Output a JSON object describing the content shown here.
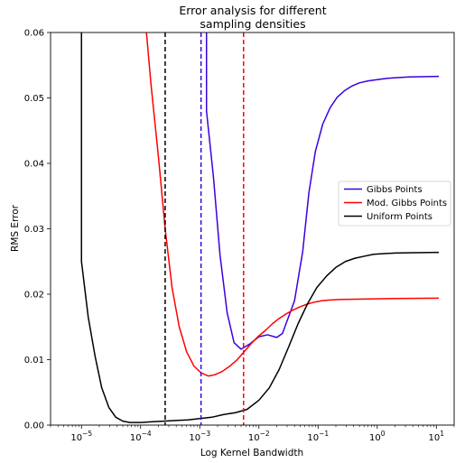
{
  "chart_data": {
    "type": "line",
    "title_lines": [
      "Error analysis for different",
      "sampling densities"
    ],
    "xlabel": "Log Kernel Bandwidth",
    "ylabel": "RMS Error",
    "xscale": "log",
    "xlim": [
      3e-06,
      20
    ],
    "ylim": [
      0,
      0.06
    ],
    "yticks": [
      0.0,
      0.01,
      0.02,
      0.03,
      0.04,
      0.05,
      0.06
    ],
    "ytick_labels": [
      "0.00",
      "0.01",
      "0.02",
      "0.03",
      "0.04",
      "0.05",
      "0.06"
    ],
    "xticks": [
      {
        "base": "10",
        "exp": "−5",
        "value": 1e-05
      },
      {
        "base": "10",
        "exp": "−4",
        "value": 0.0001
      },
      {
        "base": "10",
        "exp": "−3",
        "value": 0.001
      },
      {
        "base": "10",
        "exp": "−2",
        "value": 0.01
      },
      {
        "base": "10",
        "exp": "−1",
        "value": 0.1
      },
      {
        "base": "10",
        "exp": "0",
        "value": 1
      },
      {
        "base": "10",
        "exp": "1",
        "value": 10
      }
    ],
    "grid": false,
    "legend_position": "center-right",
    "series": [
      {
        "name": "Gibbs Points",
        "color": "#3a00e0",
        "points": [
          [
            0.0013,
            0.062
          ],
          [
            0.0013,
            0.048
          ],
          [
            0.0017,
            0.038
          ],
          [
            0.0022,
            0.026
          ],
          [
            0.0029,
            0.0172
          ],
          [
            0.0038,
            0.0126
          ],
          [
            0.005,
            0.0116
          ],
          [
            0.007,
            0.0124
          ],
          [
            0.01,
            0.0135
          ],
          [
            0.014,
            0.0138
          ],
          [
            0.02,
            0.0134
          ],
          [
            0.025,
            0.014
          ],
          [
            0.04,
            0.019
          ],
          [
            0.055,
            0.0265
          ],
          [
            0.07,
            0.0355
          ],
          [
            0.09,
            0.0418
          ],
          [
            0.12,
            0.046
          ],
          [
            0.16,
            0.0485
          ],
          [
            0.21,
            0.0501
          ],
          [
            0.28,
            0.0511
          ],
          [
            0.37,
            0.0518
          ],
          [
            0.5,
            0.0523
          ],
          [
            0.7,
            0.0526
          ],
          [
            1,
            0.0528
          ],
          [
            1.5,
            0.053
          ],
          [
            2.2,
            0.0531
          ],
          [
            3.5,
            0.0532
          ],
          [
            5.5,
            0.05325
          ],
          [
            11,
            0.0533
          ]
        ]
      },
      {
        "name": "Mod. Gibbs Points",
        "color": "#ff0000",
        "points": [
          [
            0.00012,
            0.062
          ],
          [
            0.00015,
            0.052
          ],
          [
            0.0002,
            0.041
          ],
          [
            0.00026,
            0.03
          ],
          [
            0.00034,
            0.021
          ],
          [
            0.00045,
            0.015
          ],
          [
            0.0006,
            0.0112
          ],
          [
            0.0008,
            0.009
          ],
          [
            0.00105,
            0.008
          ],
          [
            0.0014,
            0.0075
          ],
          [
            0.0018,
            0.0077
          ],
          [
            0.0024,
            0.0082
          ],
          [
            0.0032,
            0.009
          ],
          [
            0.0042,
            0.0099
          ],
          [
            0.0055,
            0.0111
          ],
          [
            0.0073,
            0.0124
          ],
          [
            0.0096,
            0.0135
          ],
          [
            0.013,
            0.0145
          ],
          [
            0.017,
            0.0155
          ],
          [
            0.022,
            0.0163
          ],
          [
            0.029,
            0.017
          ],
          [
            0.038,
            0.0176
          ],
          [
            0.05,
            0.0181
          ],
          [
            0.066,
            0.0185
          ],
          [
            0.087,
            0.0188
          ],
          [
            0.115,
            0.019
          ],
          [
            0.15,
            0.0191
          ],
          [
            0.25,
            0.0192
          ],
          [
            1.9,
            0.01935
          ],
          [
            11,
            0.0194
          ]
        ]
      },
      {
        "name": "Uniform Points",
        "color": "#000000",
        "points": [
          [
            1e-05,
            0.062
          ],
          [
            1e-05,
            0.025
          ],
          [
            1.3e-05,
            0.0165
          ],
          [
            1.7e-05,
            0.0105
          ],
          [
            2.2e-05,
            0.0057
          ],
          [
            2.9e-05,
            0.0027
          ],
          [
            3.8e-05,
            0.0012
          ],
          [
            5e-05,
            0.0006
          ],
          [
            6.6e-05,
            0.0004
          ],
          [
            0.0001,
            0.0004
          ],
          [
            0.00015,
            0.0005
          ],
          [
            0.00025,
            0.0006
          ],
          [
            0.0004,
            0.0007
          ],
          [
            0.00063,
            0.0008
          ],
          [
            0.001,
            0.001
          ],
          [
            0.0016,
            0.0012
          ],
          [
            0.0025,
            0.0016
          ],
          [
            0.004,
            0.0019
          ],
          [
            0.0063,
            0.0024
          ],
          [
            0.01,
            0.0038
          ],
          [
            0.015,
            0.0057
          ],
          [
            0.022,
            0.0085
          ],
          [
            0.032,
            0.012
          ],
          [
            0.046,
            0.0155
          ],
          [
            0.066,
            0.0185
          ],
          [
            0.095,
            0.021
          ],
          [
            0.14,
            0.0228
          ],
          [
            0.2,
            0.0241
          ],
          [
            0.29,
            0.025
          ],
          [
            0.42,
            0.0255
          ],
          [
            0.6,
            0.0258
          ],
          [
            0.87,
            0.0261
          ],
          [
            1.3,
            0.0262
          ],
          [
            2,
            0.0263
          ],
          [
            4,
            0.02635
          ],
          [
            11,
            0.0264
          ]
        ]
      }
    ],
    "vlines": [
      {
        "x": 0.00026,
        "color": "#000000"
      },
      {
        "x": 0.00105,
        "color": "#3a00e0"
      },
      {
        "x": 0.0055,
        "color": "#ff0000"
      }
    ]
  }
}
